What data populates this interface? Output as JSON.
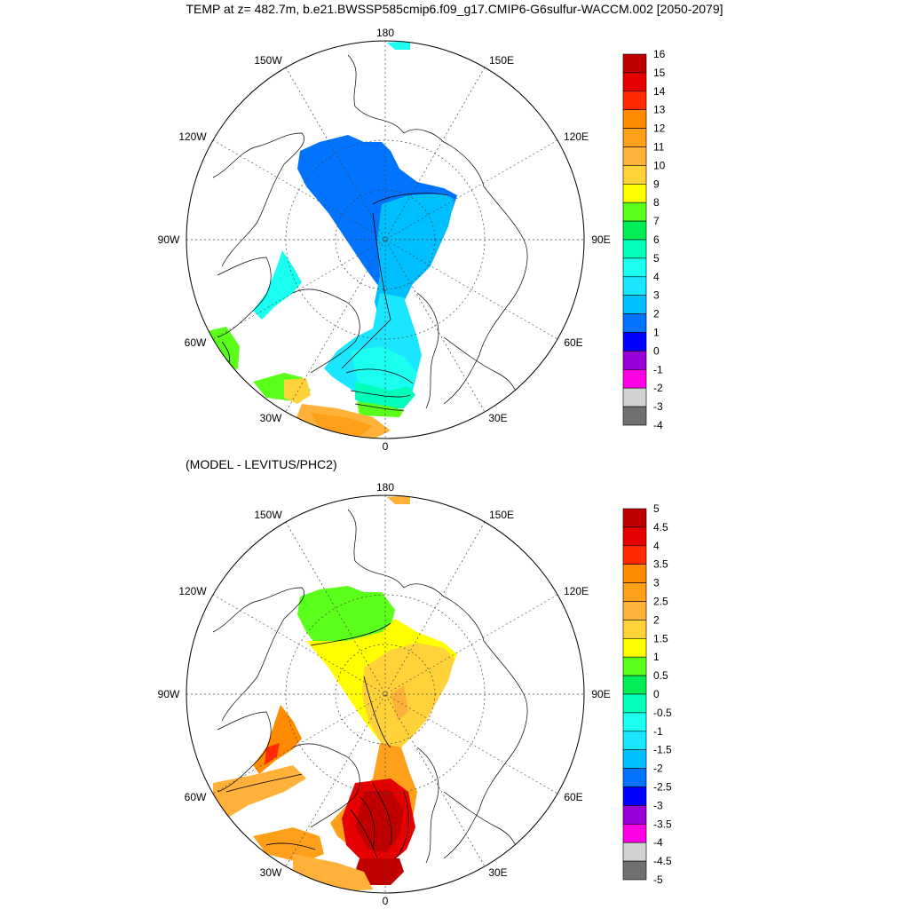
{
  "title": "TEMP at z= 482.7m, b.e21.BWSSP585cmip6.f09_g17.CMIP6-G6sulfur-WACCM.002 [2050-2079]",
  "subtitle": "(MODEL - LEVITUS/PHC2)",
  "panels": [
    {
      "id": "model",
      "lon_labels": [
        "180",
        "150E",
        "120E",
        "90E",
        "60E",
        "30E",
        "0",
        "30W",
        "60W",
        "90W",
        "120W",
        "150W"
      ],
      "colorbar": {
        "labels": [
          "16",
          "15",
          "14",
          "13",
          "12",
          "11",
          "10",
          "9",
          "8",
          "7",
          "6",
          "5",
          "4",
          "3",
          "2",
          "1",
          "0",
          "-1",
          "-2",
          "-3",
          "-4"
        ],
        "colors": [
          "#c00000",
          "#e60000",
          "#ff2a00",
          "#ff8c00",
          "#ff9f1a",
          "#ffb13a",
          "#ffd23a",
          "#ffff00",
          "#5aff1a",
          "#00ee55",
          "#00ffbb",
          "#1afff0",
          "#1ae6ff",
          "#00bfff",
          "#0073ff",
          "#0000ff",
          "#9a00d8",
          "#ff00e6",
          "#d2d2d2",
          "#707070"
        ]
      }
    },
    {
      "id": "difference",
      "lon_labels": [
        "180",
        "150E",
        "120E",
        "90E",
        "60E",
        "30E",
        "0",
        "30W",
        "60W",
        "90W",
        "120W",
        "150W"
      ],
      "colorbar": {
        "labels": [
          "5",
          "4.5",
          "4",
          "3.5",
          "3",
          "2.5",
          "2",
          "1.5",
          "1",
          "0.5",
          "0",
          "-0.5",
          "-1",
          "-1.5",
          "-2",
          "-2.5",
          "-3",
          "-3.5",
          "-4",
          "-4.5",
          "-5"
        ],
        "colors": [
          "#c00000",
          "#e60000",
          "#ff2a00",
          "#ff8c00",
          "#ff9f1a",
          "#ffb13a",
          "#ffd23a",
          "#ffff00",
          "#5aff1a",
          "#00ee55",
          "#00ffbb",
          "#1afff0",
          "#1ae6ff",
          "#00bfff",
          "#0073ff",
          "#0000ff",
          "#9a00d8",
          "#ff00e6",
          "#d2d2d2",
          "#707070"
        ]
      }
    }
  ]
}
